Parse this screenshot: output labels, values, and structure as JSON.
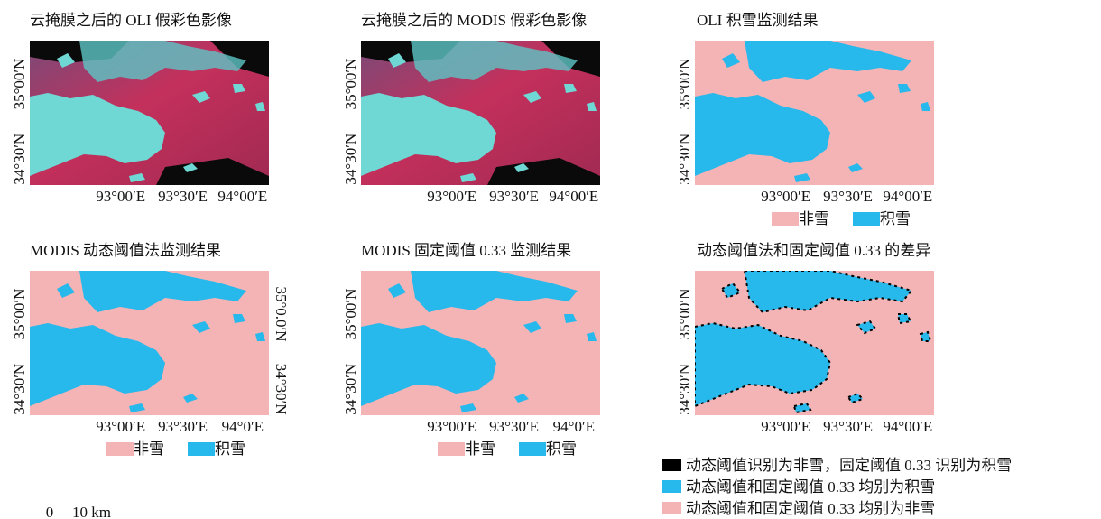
{
  "panels": [
    {
      "title": "云掩膜之后的 OLI 假彩色影像",
      "y_labels": [
        "35°00′N",
        "34°30′N"
      ],
      "x_labels": [
        "93°00′E",
        "93°30′E",
        "94°00′E"
      ]
    },
    {
      "title": "云掩膜之后的 MODIS 假彩色影像",
      "y_labels": [
        "35°00′N",
        "34°30′N"
      ],
      "x_labels": [
        "93°00′E",
        "93°30′E",
        "94°00′E"
      ]
    },
    {
      "title": "OLI 积雪监测结果",
      "y_labels": [
        "35°00′N",
        "34°30′N"
      ],
      "x_labels": [
        "93°00′E",
        "93°30′E",
        "94°00′E"
      ],
      "legend": [
        {
          "label": "非雪",
          "color": "#f4b4b6"
        },
        {
          "label": "积雪",
          "color": "#27b8ec"
        }
      ]
    },
    {
      "title": "MODIS 动态阈值法监测结果",
      "y_labels": [
        "35°00′N",
        "34°30′N"
      ],
      "y_labels_right": [
        "35°0.0′N",
        "34°30′N"
      ],
      "x_labels": [
        "93°00′E",
        "93°30′E",
        "94°0′E"
      ],
      "legend": [
        {
          "label": "非雪",
          "color": "#f4b4b6"
        },
        {
          "label": "积雪",
          "color": "#27b8ec"
        }
      ]
    },
    {
      "title": "MODIS 固定阈值 0.33 监测结果",
      "y_labels": [
        "35°00′N",
        "34°30′N"
      ],
      "x_labels": [
        "93°00′E",
        "93°30′E",
        "94°0′E"
      ],
      "legend": [
        {
          "label": "非雪",
          "color": "#f4b4b6"
        },
        {
          "label": "积雪",
          "color": "#27b8ec"
        }
      ]
    },
    {
      "title": "动态阈值法和固定阈值 0.33 的差异",
      "y_labels": [
        "35°00′N",
        "34°30′N"
      ],
      "x_labels": [
        "93°00′E",
        "93°30′E",
        "94°00′E"
      ],
      "legend": [
        {
          "label": "动态阈值识别为非雪，固定阈值 0.33 识别为积雪",
          "color": "#000000"
        },
        {
          "label": "动态阈值和固定阈值 0.33 均别为积雪",
          "color": "#27b8ec"
        },
        {
          "label": "动态阈值和固定阈值 0.33 均别为非雪",
          "color": "#f4b4b6"
        }
      ]
    }
  ],
  "scale_bar": {
    "start": "0",
    "end": "10 km"
  }
}
